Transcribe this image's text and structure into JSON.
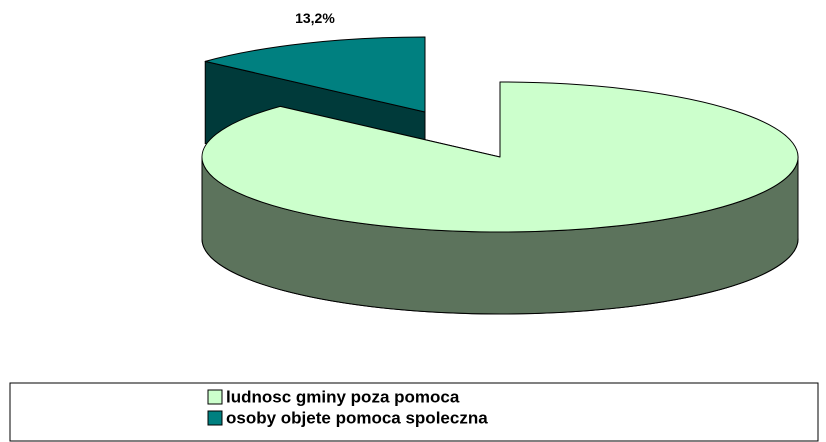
{
  "chart_data": {
    "type": "pie",
    "categories": [
      "ludnosc gminy poza pomoca",
      "osoby objete pomoca spoleczna"
    ],
    "values": [
      86.8,
      13.2
    ],
    "value_labels": [
      null,
      "13,2%"
    ],
    "colors": [
      "#ccffcc",
      "#008080"
    ],
    "legend": "bottom"
  }
}
